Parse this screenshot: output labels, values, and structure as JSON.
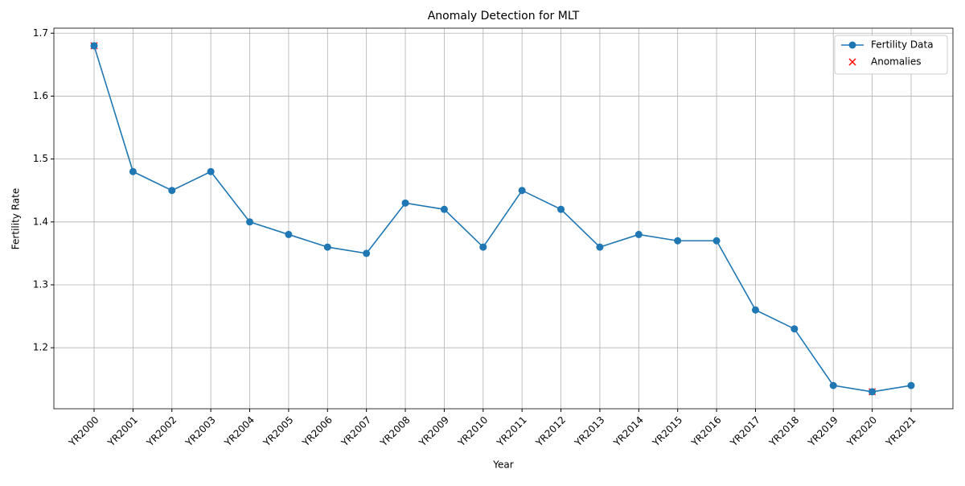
{
  "chart_data": {
    "type": "line",
    "title": "Anomaly Detection for MLT",
    "xlabel": "Year",
    "ylabel": "Fertility Rate",
    "categories": [
      "YR2000",
      "YR2001",
      "YR2002",
      "YR2003",
      "YR2004",
      "YR2005",
      "YR2006",
      "YR2007",
      "YR2008",
      "YR2009",
      "YR2010",
      "YR2011",
      "YR2012",
      "YR2013",
      "YR2014",
      "YR2015",
      "YR2016",
      "YR2017",
      "YR2018",
      "YR2019",
      "YR2020",
      "YR2021"
    ],
    "series": [
      {
        "name": "Fertility Data",
        "color": "#1f77b4",
        "marker": "circle",
        "values": [
          1.68,
          1.48,
          1.45,
          1.48,
          1.4,
          1.38,
          1.36,
          1.35,
          1.43,
          1.42,
          1.36,
          1.45,
          1.42,
          1.36,
          1.38,
          1.37,
          1.37,
          1.26,
          1.23,
          1.14,
          1.13,
          1.14
        ]
      },
      {
        "name": "Anomalies",
        "color": "#ff0000",
        "marker": "x",
        "values": [
          1.68,
          null,
          null,
          null,
          null,
          null,
          null,
          null,
          null,
          null,
          null,
          null,
          null,
          null,
          null,
          null,
          null,
          null,
          null,
          null,
          1.13,
          null
        ]
      }
    ],
    "ylim": [
      1.103,
      1.708
    ],
    "yticks": [
      1.2,
      1.3,
      1.4,
      1.5,
      1.6,
      1.7
    ],
    "grid": true,
    "legend": "upper right"
  }
}
